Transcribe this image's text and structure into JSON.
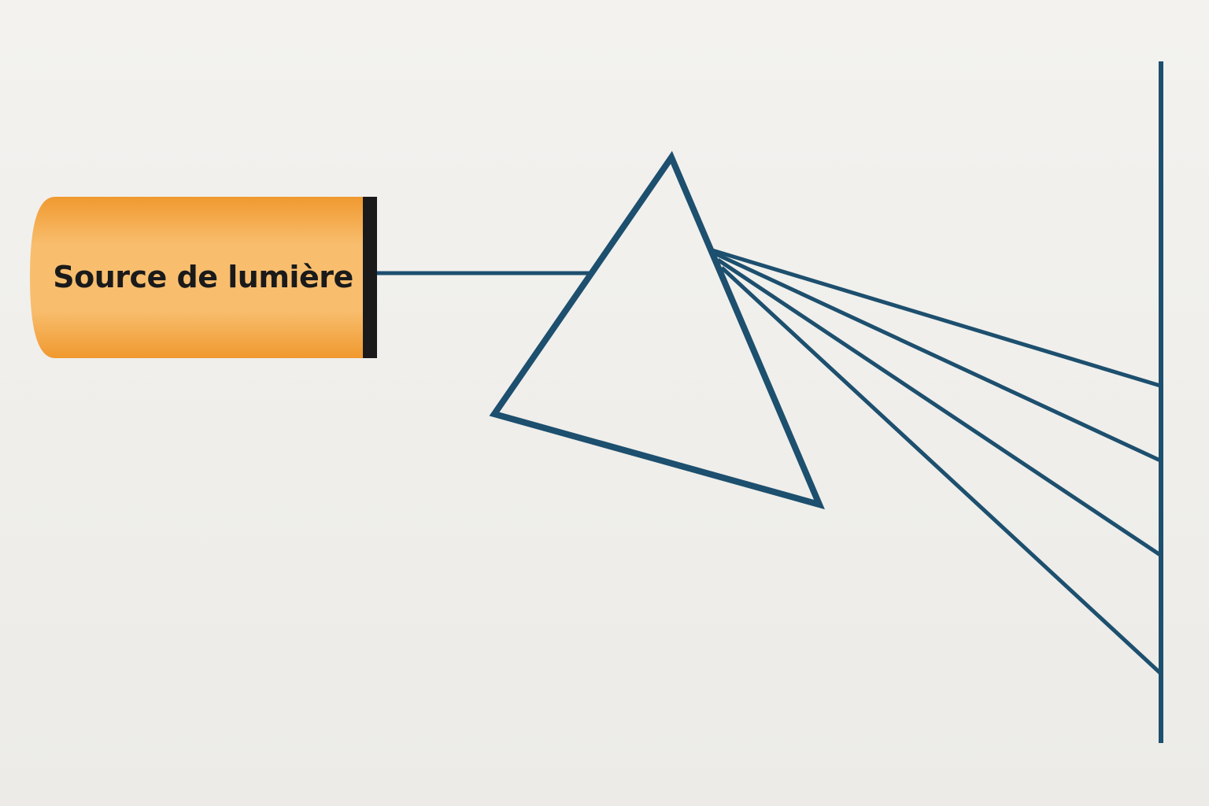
{
  "diagram": {
    "source": {
      "label": "Source de lumière",
      "color": "#f5a94a"
    },
    "stroke_color": "#1d4f6e",
    "source_cap_color": "#1a1a1a",
    "dispersed_ray_count": 4
  }
}
